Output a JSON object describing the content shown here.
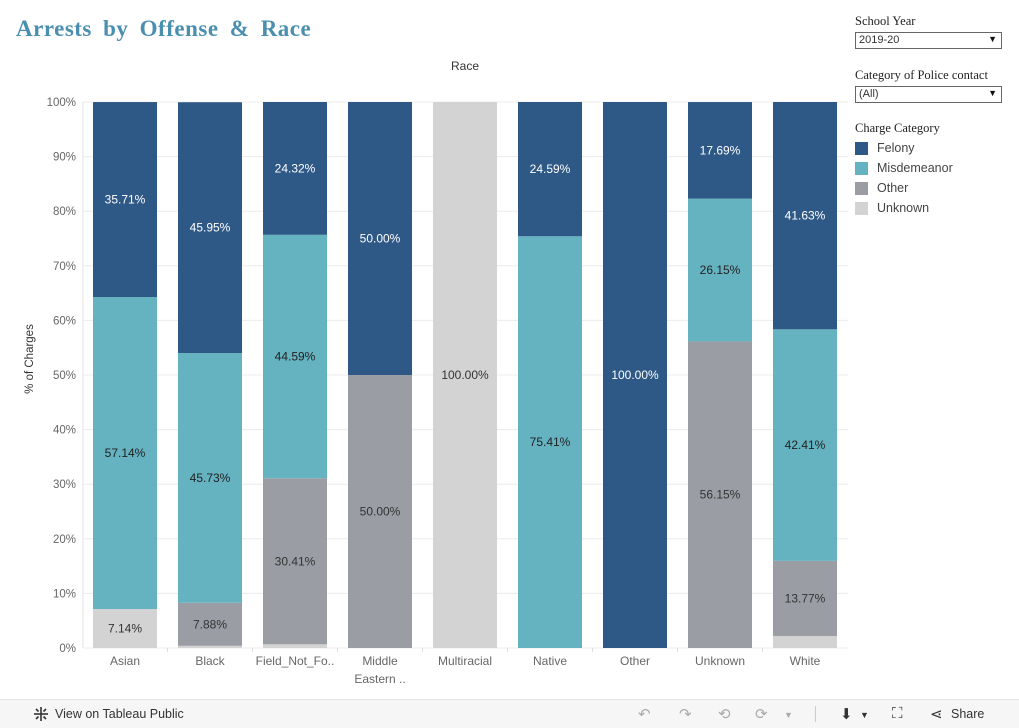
{
  "title": "Arrests by Offense & Race",
  "filters": {
    "school_year": {
      "label": "School Year",
      "value": "2019-20"
    },
    "police_contact": {
      "label": "Category of Police contact",
      "value": "(All)"
    }
  },
  "legend": {
    "title": "Charge Category",
    "items": [
      {
        "label": "Felony",
        "color": "#2e5886"
      },
      {
        "label": "Misdemeanor",
        "color": "#65b3c1"
      },
      {
        "label": "Other",
        "color": "#9a9da3"
      },
      {
        "label": "Unknown",
        "color": "#d3d3d3"
      }
    ]
  },
  "chart_data": {
    "type": "bar",
    "stacked": true,
    "title": "Race",
    "xlabel": "",
    "ylabel": "% of Charges",
    "ylim": [
      0,
      100
    ],
    "yticks": [
      "0%",
      "10%",
      "20%",
      "30%",
      "40%",
      "50%",
      "60%",
      "70%",
      "80%",
      "90%",
      "100%"
    ],
    "categories": [
      "Asian",
      "Black",
      "Field_Not_Fo..",
      "Middle Eastern ..",
      "Multiracial",
      "Native",
      "Other",
      "Unknown",
      "White"
    ],
    "series": [
      {
        "name": "Unknown",
        "color": "#d3d3d3",
        "text_color": "#333333",
        "values": [
          7.14,
          0.4,
          0.68,
          0,
          100.0,
          0,
          0,
          0,
          2.19
        ],
        "labels": [
          "7.14%",
          "",
          "",
          "",
          "100.00%",
          "",
          "",
          "",
          ""
        ]
      },
      {
        "name": "Other",
        "color": "#9a9da3",
        "text_color": "#333333",
        "values": [
          0,
          7.88,
          30.41,
          50.0,
          0,
          0,
          0,
          56.15,
          13.77
        ],
        "labels": [
          "",
          "7.88%",
          "30.41%",
          "50.00%",
          "",
          "",
          "",
          "56.15%",
          "13.77%"
        ]
      },
      {
        "name": "Misdemeanor",
        "color": "#65b3c1",
        "text_color": "#222222",
        "values": [
          57.14,
          45.73,
          44.59,
          0,
          0,
          75.41,
          0,
          26.15,
          42.41
        ],
        "labels": [
          "57.14%",
          "45.73%",
          "44.59%",
          "",
          "",
          "75.41%",
          "",
          "26.15%",
          "42.41%"
        ]
      },
      {
        "name": "Felony",
        "color": "#2e5886",
        "text_color": "#ffffff",
        "values": [
          35.71,
          45.95,
          24.32,
          50.0,
          0,
          24.59,
          100.0,
          17.69,
          41.63
        ],
        "labels": [
          "35.71%",
          "45.95%",
          "24.32%",
          "50.00%",
          "",
          "24.59%",
          "100.00%",
          "17.69%",
          "41.63%"
        ]
      }
    ]
  },
  "footer": {
    "view_label": "View on Tableau Public",
    "share_label": "Share"
  }
}
